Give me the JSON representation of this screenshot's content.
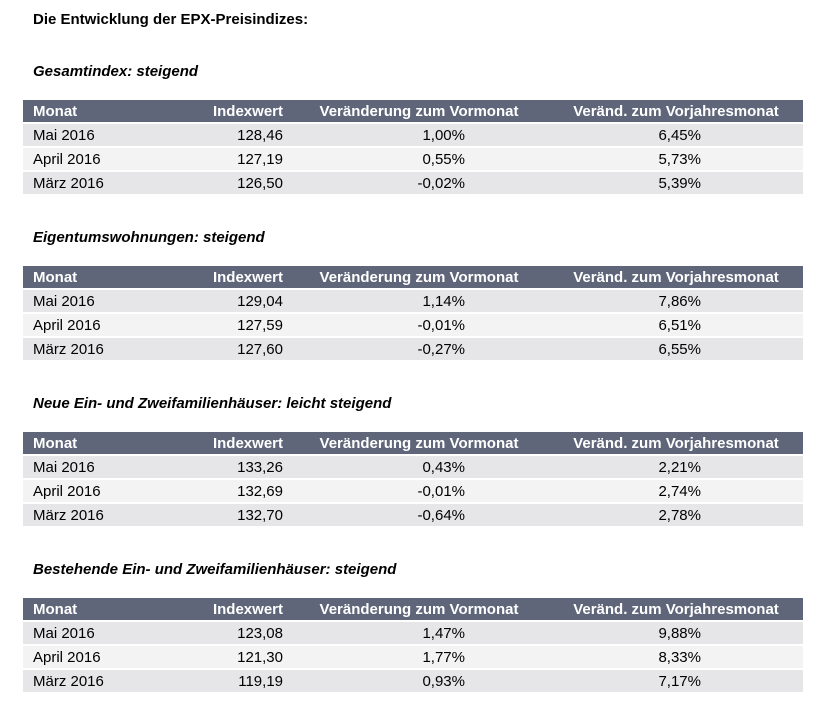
{
  "title": "Die Entwicklung der EPX-Preisindizes:",
  "columns": [
    "Monat",
    "Indexwert",
    "Veränderung zum Vormonat",
    "Veränd. zum Vorjahresmonat"
  ],
  "sections": [
    {
      "heading": "Gesamtindex: steigend",
      "rows": [
        {
          "month": "Mai 2016",
          "index": "128,46",
          "mom": "1,00%",
          "yoy": "6,45%"
        },
        {
          "month": "April 2016",
          "index": "127,19",
          "mom": "0,55%",
          "yoy": "5,73%"
        },
        {
          "month": "März 2016",
          "index": "126,50",
          "mom": "-0,02%",
          "yoy": "5,39%"
        }
      ]
    },
    {
      "heading": "Eigentumswohnungen: steigend",
      "rows": [
        {
          "month": "Mai 2016",
          "index": "129,04",
          "mom": "1,14%",
          "yoy": "7,86%"
        },
        {
          "month": "April 2016",
          "index": "127,59",
          "mom": "-0,01%",
          "yoy": "6,51%"
        },
        {
          "month": "März 2016",
          "index": "127,60",
          "mom": "-0,27%",
          "yoy": "6,55%"
        }
      ]
    },
    {
      "heading": "Neue Ein- und Zweifamilienhäuser: leicht steigend",
      "rows": [
        {
          "month": "Mai 2016",
          "index": "133,26",
          "mom": "0,43%",
          "yoy": "2,21%"
        },
        {
          "month": "April 2016",
          "index": "132,69",
          "mom": "-0,01%",
          "yoy": "2,74%"
        },
        {
          "month": "März 2016",
          "index": "132,70",
          "mom": "-0,64%",
          "yoy": "2,78%"
        }
      ]
    },
    {
      "heading": "Bestehende Ein- und Zweifamilienhäuser: steigend",
      "rows": [
        {
          "month": "Mai 2016",
          "index": "123,08",
          "mom": "1,47%",
          "yoy": "9,88%"
        },
        {
          "month": "April 2016",
          "index": "121,30",
          "mom": "1,77%",
          "yoy": "8,33%"
        },
        {
          "month": "März 2016",
          "index": "119,19",
          "mom": "0,93%",
          "yoy": "7,17%"
        }
      ]
    }
  ],
  "colors": {
    "header_bg": "#5f6679",
    "header_text": "#ffffff",
    "row_shade": "#e6e6e8",
    "row_light": "#f3f3f4"
  }
}
